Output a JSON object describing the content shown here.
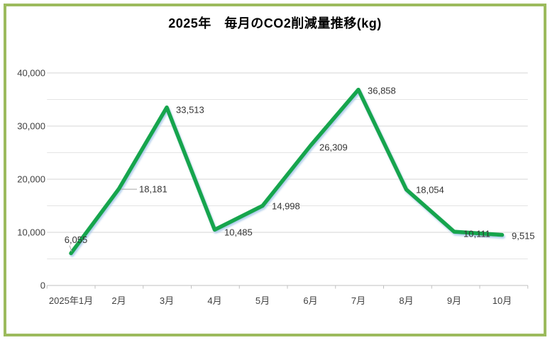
{
  "chart_data": {
    "type": "line",
    "title": "2025年　毎月のCO2削減量推移(kg)",
    "categories": [
      "2025年1月",
      "2月",
      "3月",
      "4月",
      "5月",
      "6月",
      "7月",
      "8月",
      "9月",
      "10月"
    ],
    "series": [
      {
        "values": [
          6055,
          18181,
          33513,
          10485,
          14998,
          26309,
          36858,
          18054,
          10111,
          9515
        ]
      }
    ],
    "data_labels": [
      "6,055",
      "18,181",
      "33,513",
      "10,485",
      "14,998",
      "26,309",
      "36,858",
      "18,054",
      "10,111",
      "9,515"
    ],
    "y_tick_labels": [
      "0",
      "10,000",
      "20,000",
      "30,000",
      "40,000"
    ],
    "ylim": [
      0,
      40000
    ],
    "y_major_step": 10000,
    "y_minor_step": 5000,
    "grid": true,
    "legend": "none",
    "xlabel": "",
    "ylabel": "",
    "colors": {
      "line": "#14A54E",
      "line_shadow": "#9DC3E6",
      "frame_border": "#9CBB5D",
      "grid_major": "#D6D6D6",
      "grid_minor": "#E4E4E4",
      "axis": "#C0C0C0",
      "leader": "#A6A6A6",
      "tick_text": "#404040",
      "data_label_text": "#333333",
      "title_text": "#000000"
    }
  }
}
